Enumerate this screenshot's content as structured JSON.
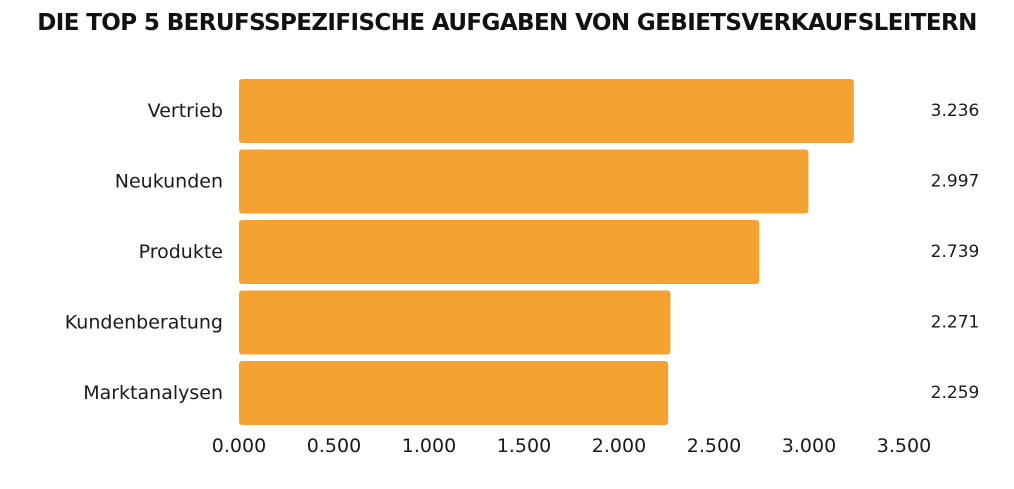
{
  "colors": {
    "bar": "#F4A332",
    "text": "#1a1a1a"
  },
  "chart_data": {
    "type": "bar",
    "orientation": "horizontal",
    "title": "DIE TOP 5 BERUFSSPEZIFISCHE AUFGABEN VON GEBIETSVERKAUFSLEITERN",
    "xlabel": "",
    "ylabel": "",
    "categories": [
      "Vertrieb",
      "Neukunden",
      "Produkte",
      "Kundenberatung",
      "Marktanalysen"
    ],
    "values": [
      3236,
      2997,
      2739,
      2271,
      2259
    ],
    "value_labels": [
      "3.236",
      "2.997",
      "2.739",
      "2.271",
      "2.259"
    ],
    "xlim": [
      0,
      3500
    ],
    "xticks": [
      0,
      500,
      1000,
      1500,
      2000,
      2500,
      3000,
      3500
    ],
    "xtick_labels": [
      "0.000",
      "0.500",
      "1.000",
      "1.500",
      "2.000",
      "2.500",
      "3.000",
      "3.500"
    ],
    "grid": false,
    "legend": "none"
  }
}
